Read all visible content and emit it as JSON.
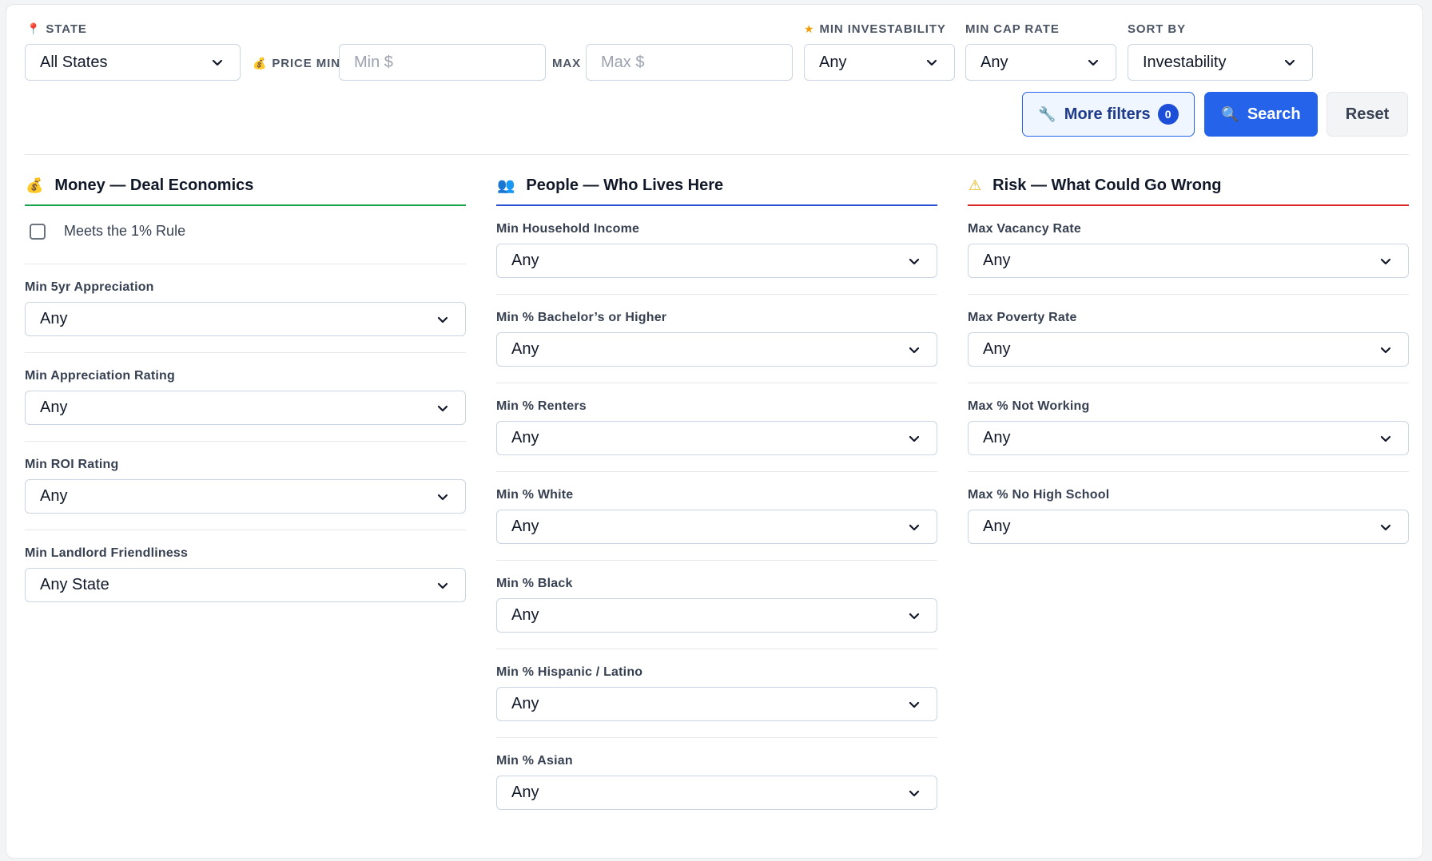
{
  "topbar": {
    "state_label": "STATE",
    "state_value": "All States",
    "price_min_label": "PRICE MIN",
    "price_min_placeholder": "Min $",
    "price_max_label": "MAX",
    "price_max_placeholder": "Max $",
    "investability_label": "MIN INVESTABILITY",
    "investability_value": "Any",
    "cap_rate_label": "MIN CAP RATE",
    "cap_rate_value": "Any",
    "sort_label": "SORT BY",
    "sort_value": "Investability"
  },
  "actions": {
    "more_filters_label": "More filters",
    "more_filters_count": "0",
    "search_label": "Search",
    "reset_label": "Reset"
  },
  "icons": {
    "state": "pushpin-icon",
    "price": "money-bag-icon",
    "investability": "star-icon",
    "more_filters": "wrench-icon",
    "search": "magnifier-icon",
    "money": "money-bag-icon",
    "people": "people-icon",
    "risk": "warning-icon"
  },
  "colors": {
    "primary": "#2563eb",
    "money_accent": "#16a34a",
    "people_accent": "#2b4fd1",
    "risk_accent": "#dc2626"
  },
  "money": {
    "title": "Money — Deal Economics",
    "one_percent_rule_label": "Meets the 1% Rule",
    "fields": [
      {
        "label": "Min 5yr Appreciation",
        "value": "Any"
      },
      {
        "label": "Min Appreciation Rating",
        "value": "Any"
      },
      {
        "label": "Min ROI Rating",
        "value": "Any"
      },
      {
        "label": "Min Landlord Friendliness",
        "value": "Any State"
      }
    ]
  },
  "people": {
    "title": "People — Who Lives Here",
    "fields": [
      {
        "label": "Min Household Income",
        "value": "Any"
      },
      {
        "label": "Min % Bachelor’s or Higher",
        "value": "Any"
      },
      {
        "label": "Min % Renters",
        "value": "Any"
      },
      {
        "label": "Min % White",
        "value": "Any"
      },
      {
        "label": "Min % Black",
        "value": "Any"
      },
      {
        "label": "Min % Hispanic / Latino",
        "value": "Any"
      },
      {
        "label": "Min % Asian",
        "value": "Any"
      }
    ]
  },
  "risk": {
    "title": "Risk — What Could Go Wrong",
    "fields": [
      {
        "label": "Max Vacancy Rate",
        "value": "Any"
      },
      {
        "label": "Max Poverty Rate",
        "value": "Any"
      },
      {
        "label": "Max % Not Working",
        "value": "Any"
      },
      {
        "label": "Max % No High School",
        "value": "Any"
      }
    ]
  }
}
